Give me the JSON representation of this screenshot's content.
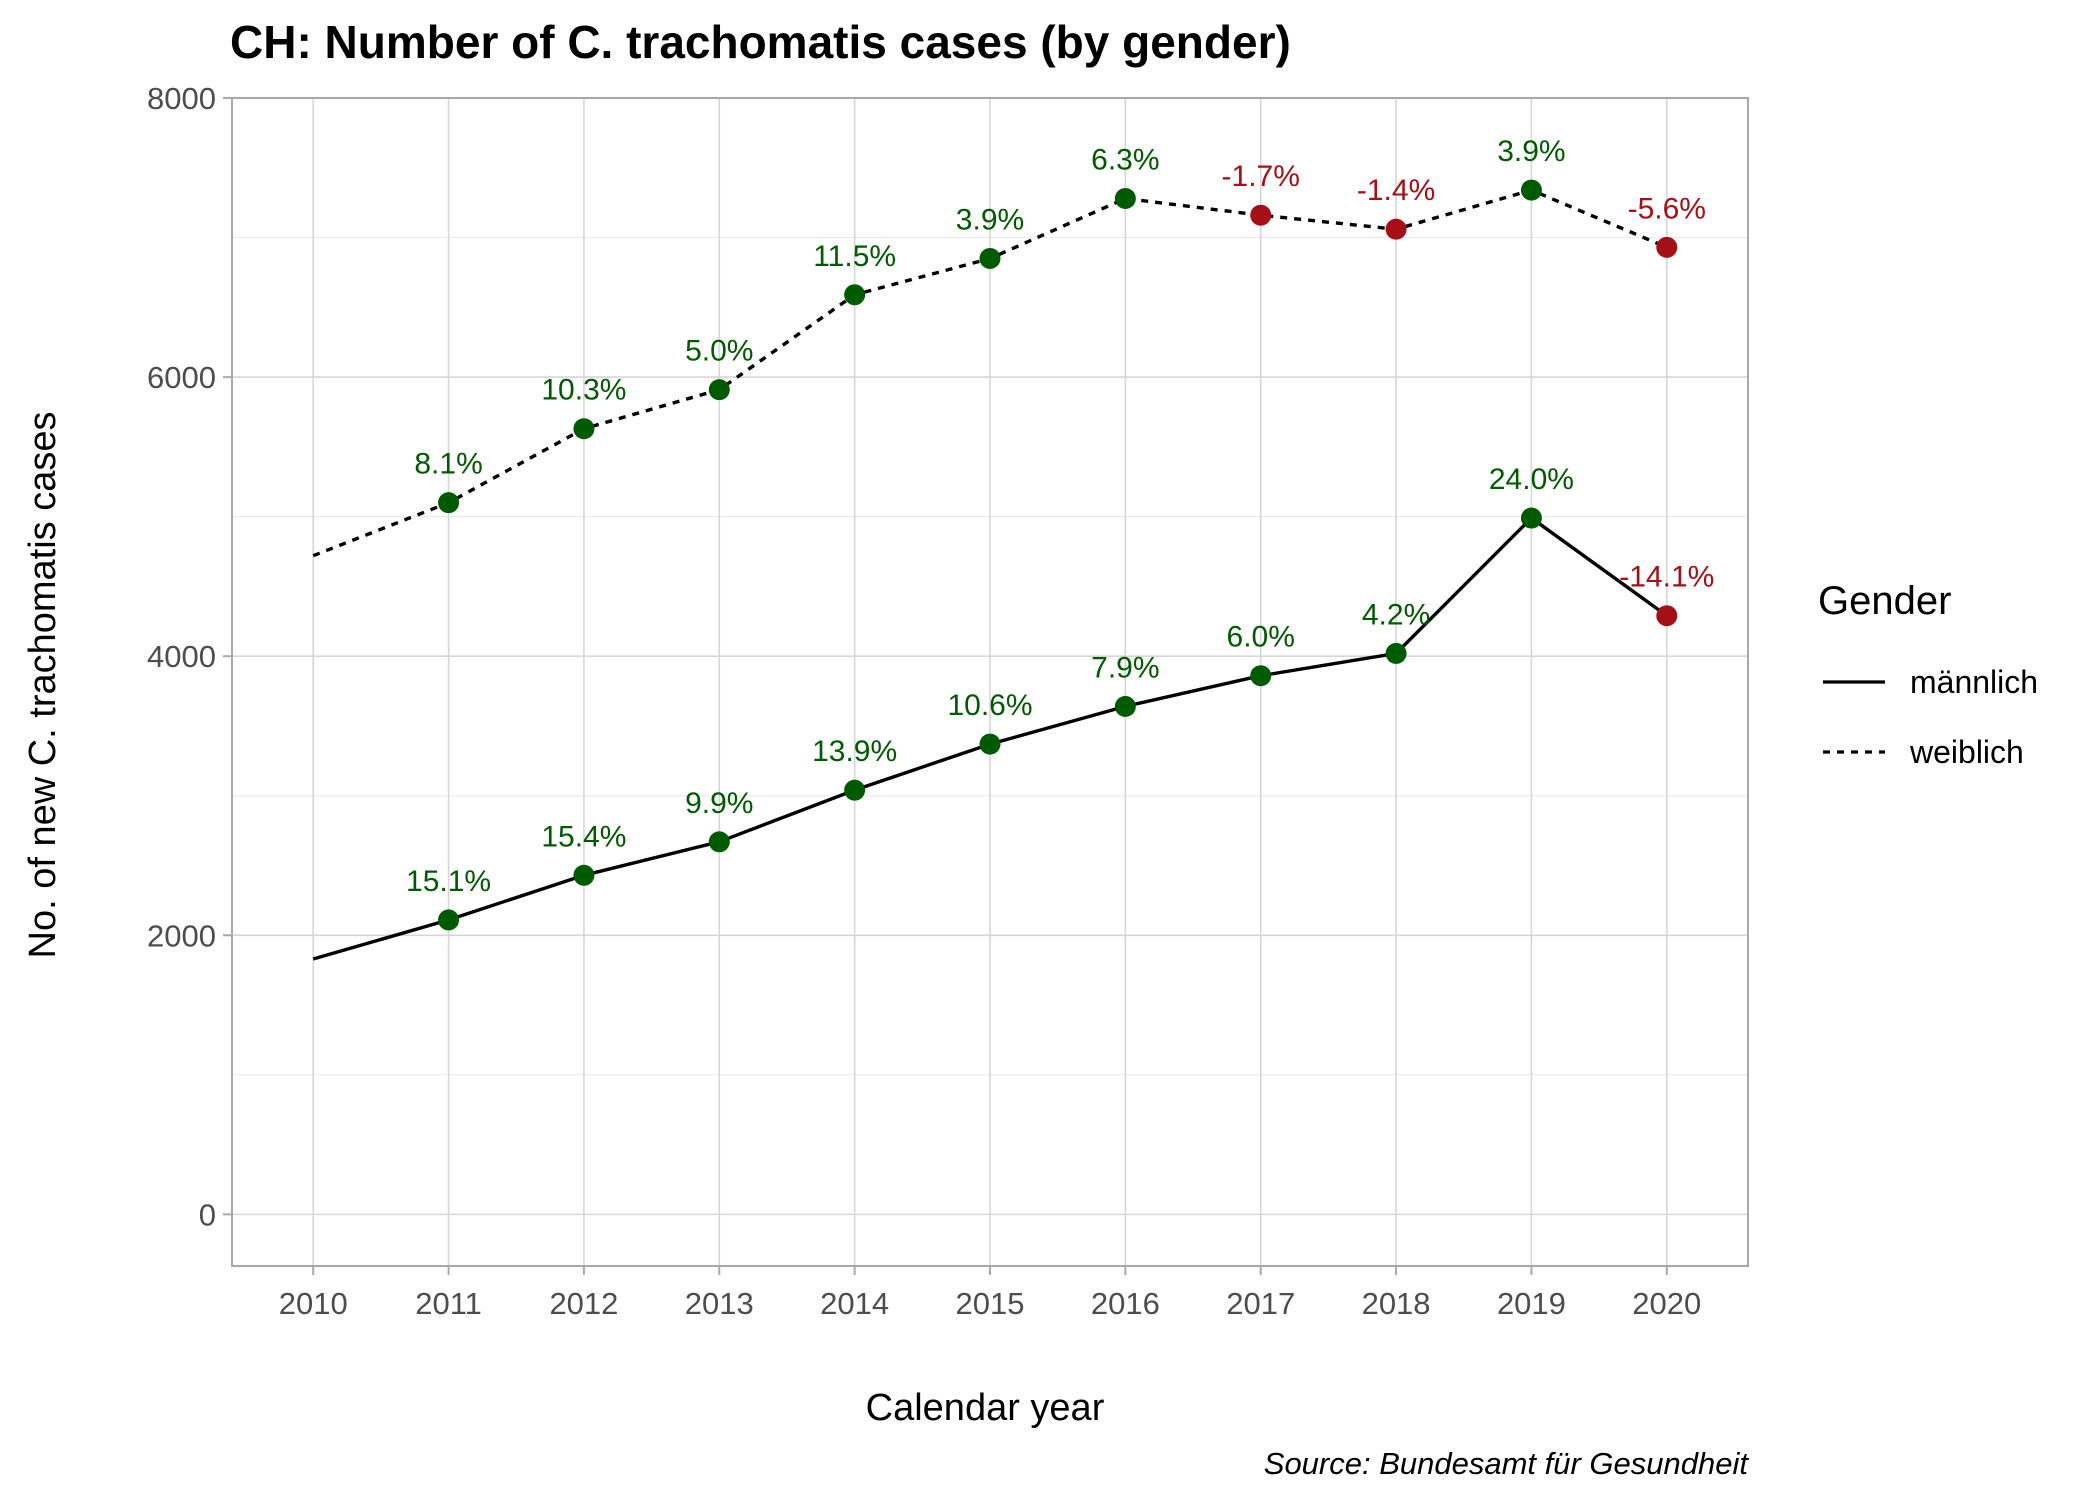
{
  "chart_data": {
    "type": "line",
    "title": "CH: Number of C. trachomatis cases (by gender)",
    "xlabel": "Calendar year",
    "ylabel": "No. of new C. trachomatis cases",
    "caption": "Source: Bundesamt für Gesundheit",
    "legend_title": "Gender",
    "legend_position": "right",
    "xlim": [
      2009.4,
      2020.6
    ],
    "ylim": [
      -370,
      8000
    ],
    "x_ticks": [
      2010,
      2011,
      2012,
      2013,
      2014,
      2015,
      2016,
      2017,
      2018,
      2019,
      2020
    ],
    "y_ticks": [
      0,
      2000,
      4000,
      6000,
      8000
    ],
    "grid": true,
    "colors": {
      "increase": "#005a00",
      "decrease": "#a50f15",
      "line": "#000000"
    },
    "series": [
      {
        "name": "männlich",
        "line_style": "solid",
        "x": [
          2010,
          2011,
          2012,
          2013,
          2014,
          2015,
          2016,
          2017,
          2018,
          2019,
          2020
        ],
        "values": [
          1830,
          2110,
          2430,
          2670,
          3040,
          3370,
          3640,
          3860,
          4020,
          4990,
          4290
        ],
        "pct_change": [
          null,
          "15.1%",
          "15.4%",
          "9.9%",
          "13.9%",
          "10.6%",
          "7.9%",
          "6.0%",
          "4.2%",
          "24.0%",
          "-14.1%"
        ]
      },
      {
        "name": "weiblich",
        "line_style": "dashed",
        "x": [
          2010,
          2011,
          2012,
          2013,
          2014,
          2015,
          2016,
          2017,
          2018,
          2019,
          2020
        ],
        "values": [
          4720,
          5100,
          5630,
          5910,
          6590,
          6850,
          7280,
          7160,
          7060,
          7340,
          6930
        ],
        "pct_change": [
          null,
          "8.1%",
          "10.3%",
          "5.0%",
          "11.5%",
          "3.9%",
          "6.3%",
          "-1.7%",
          "-1.4%",
          "3.9%",
          "-5.6%"
        ]
      }
    ]
  }
}
